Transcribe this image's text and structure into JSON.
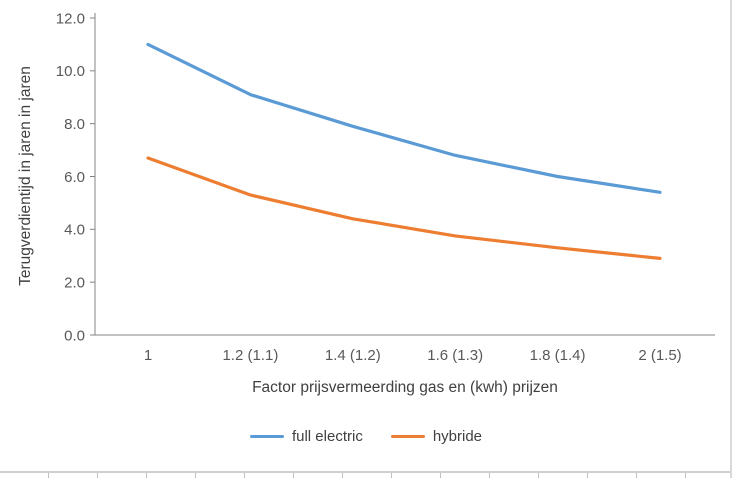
{
  "chart_data": {
    "type": "line",
    "title": "",
    "x_categories": [
      "1",
      "1.2 (1.1)",
      "1.4 (1.2)",
      "1.6 (1.3)",
      "1.8 (1.4)",
      "2 (1.5)"
    ],
    "series": [
      {
        "name": "full electric",
        "color": "#5B9BD5",
        "values": [
          11.0,
          9.1,
          7.9,
          6.8,
          6.0,
          5.4
        ]
      },
      {
        "name": "hybride",
        "color": "#ED7D31",
        "values": [
          6.7,
          5.3,
          4.4,
          3.75,
          3.3,
          2.9
        ]
      }
    ],
    "xlabel": "Factor prijsvermeerding gas en (kwh) prijzen",
    "ylabel": "Terugverdientijd in jaren in jaren",
    "ylim": [
      0,
      12
    ],
    "ytick_step": 2,
    "ytick_labels": [
      "0.0",
      "2.0",
      "4.0",
      "6.0",
      "8.0",
      "10.0",
      "12.0"
    ],
    "grid": false,
    "legend_position": "bottom",
    "line_width": 3.2
  },
  "colors": {
    "axis": "#848484",
    "tick_text": "#595959",
    "title_text": "#404040",
    "sheet_edge": "#cfcfcf"
  }
}
